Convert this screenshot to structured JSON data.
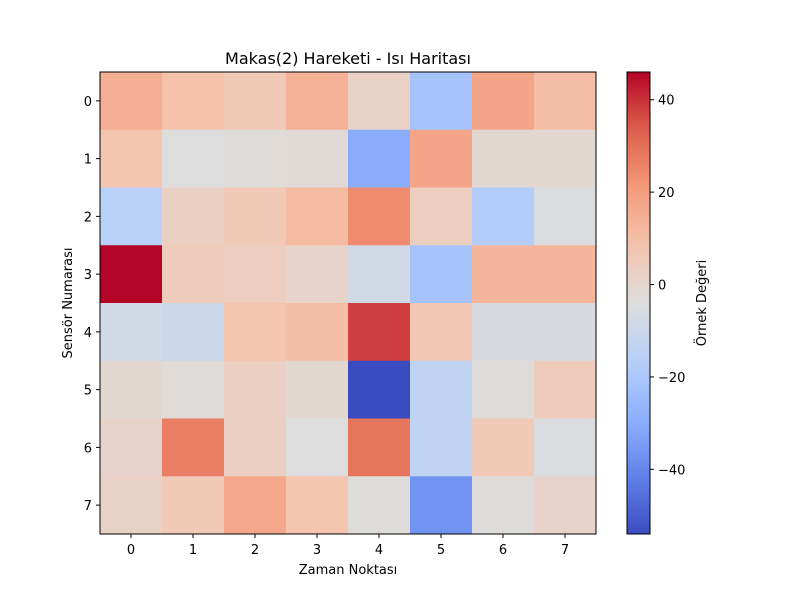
{
  "chart_data": {
    "type": "heatmap",
    "title": "Makas(2) Hareketi - Isı Haritası",
    "xlabel": "Zaman Noktası",
    "ylabel": "Sensör Numarası",
    "x_categories": [
      "0",
      "1",
      "2",
      "3",
      "4",
      "5",
      "6",
      "7"
    ],
    "y_categories": [
      "0",
      "1",
      "2",
      "3",
      "4",
      "5",
      "6",
      "7"
    ],
    "colormap": "coolwarm",
    "value_range": [
      -54,
      46
    ],
    "colorbar": {
      "label": "Örnek Değeri",
      "ticks": [
        40,
        20,
        0,
        -20,
        -40
      ],
      "tick_labels": [
        "40",
        "20",
        "0",
        "−20",
        "−40"
      ]
    },
    "values": [
      [
        15,
        9,
        6,
        14,
        2,
        -22,
        18,
        10
      ],
      [
        8,
        -4,
        -3,
        -2,
        -30,
        18,
        -1,
        -1
      ],
      [
        -16,
        3,
        6,
        11,
        24,
        4,
        -18,
        -5
      ],
      [
        46,
        5,
        4,
        1,
        -8,
        -22,
        13,
        13
      ],
      [
        -8,
        -10,
        8,
        10,
        38,
        7,
        -6,
        -6
      ],
      [
        -1,
        -3,
        3,
        -1,
        -54,
        -14,
        -3,
        5
      ],
      [
        1,
        27,
        3,
        -4,
        29,
        -14,
        6,
        -5
      ],
      [
        2,
        6,
        17,
        8,
        -3,
        -37,
        -3,
        1
      ]
    ]
  }
}
